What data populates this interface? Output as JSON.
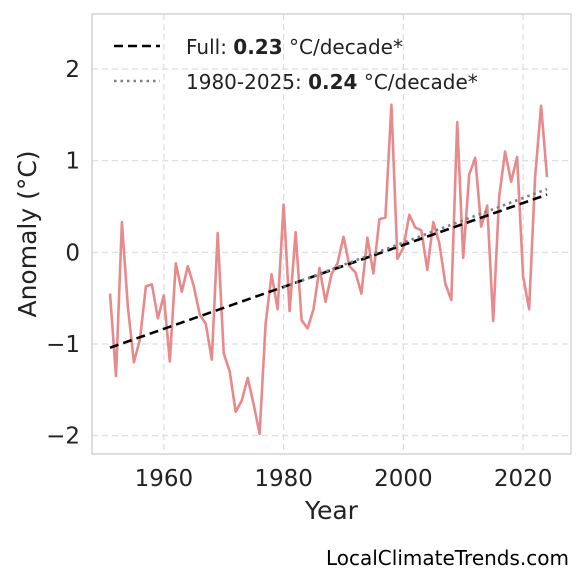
{
  "chart_data": {
    "type": "line",
    "xlabel": "Year",
    "ylabel": "Anomaly (°C)",
    "xlim": [
      1948,
      2028
    ],
    "ylim": [
      -2.2,
      2.6
    ],
    "xticks": [
      1960,
      1980,
      2000,
      2020
    ],
    "yticks": [
      -2,
      -1,
      0,
      1,
      2
    ],
    "ytick_labels": [
      "−2",
      "−1",
      "0",
      "1",
      "2"
    ],
    "grid": true,
    "legend_position": "top-left",
    "series": [
      {
        "style": "line",
        "color": "#e88a8c",
        "x": [
          1951,
          1952,
          1953,
          1954,
          1955,
          1956,
          1957,
          1958,
          1959,
          1960,
          1961,
          1962,
          1963,
          1964,
          1965,
          1966,
          1967,
          1968,
          1969,
          1970,
          1971,
          1972,
          1973,
          1974,
          1975,
          1976,
          1977,
          1978,
          1979,
          1980,
          1981,
          1982,
          1983,
          1984,
          1985,
          1986,
          1987,
          1988,
          1989,
          1990,
          1991,
          1992,
          1993,
          1994,
          1995,
          1996,
          1997,
          1998,
          1999,
          2000,
          2001,
          2002,
          2003,
          2004,
          2005,
          2006,
          2007,
          2008,
          2009,
          2010,
          2011,
          2012,
          2013,
          2014,
          2015,
          2016,
          2017,
          2018,
          2019,
          2020,
          2021,
          2022,
          2023,
          2024
        ],
        "y": [
          -0.45,
          -1.35,
          0.33,
          -0.6,
          -1.2,
          -0.95,
          -0.37,
          -0.35,
          -0.72,
          -0.47,
          -1.19,
          -0.12,
          -0.43,
          -0.15,
          -0.37,
          -0.68,
          -0.78,
          -1.17,
          0.21,
          -1.1,
          -1.3,
          -1.74,
          -1.62,
          -1.37,
          -1.66,
          -1.98,
          -0.78,
          -0.24,
          -0.62,
          0.52,
          -0.64,
          0.22,
          -0.74,
          -0.83,
          -0.62,
          -0.17,
          -0.54,
          -0.24,
          -0.12,
          0.17,
          -0.15,
          -0.22,
          -0.45,
          0.16,
          -0.23,
          0.36,
          0.38,
          1.61,
          -0.07,
          0.05,
          0.41,
          0.27,
          0.24,
          -0.19,
          0.33,
          0.1,
          -0.34,
          -0.52,
          1.42,
          -0.06,
          0.85,
          1.03,
          0.28,
          0.51,
          -0.75,
          0.6,
          1.1,
          0.77,
          1.04,
          -0.26,
          -0.62,
          0.82,
          1.6,
          0.82
        ]
      },
      {
        "name": "Full:",
        "rate": "0.23",
        "unit": "°C/decade*",
        "style": "dashed",
        "color": "#000000",
        "x": [
          1951,
          2024
        ],
        "y": [
          -1.04,
          0.63
        ]
      },
      {
        "name": "1980-2025:",
        "rate": "0.24",
        "unit": "°C/decade*",
        "style": "dotted",
        "color": "#7f7f7f",
        "x": [
          1980,
          2024
        ],
        "y": [
          -0.38,
          0.69
        ]
      }
    ]
  },
  "footer": "LocalClimateTrends.com"
}
